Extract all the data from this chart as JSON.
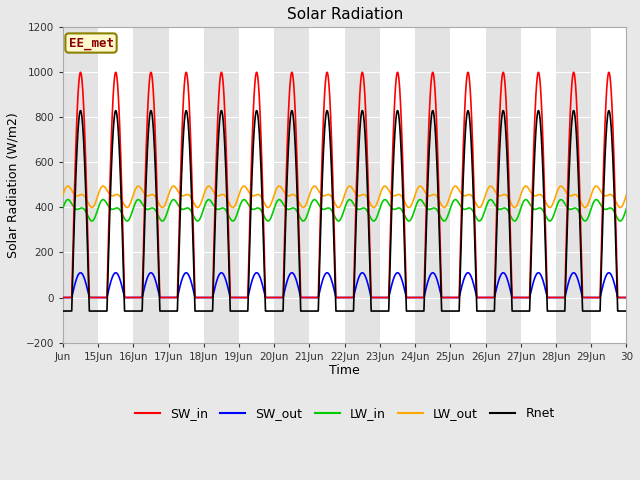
{
  "title": "Solar Radiation",
  "xlabel": "Time",
  "ylabel": "Solar Radiation (W/m2)",
  "ylim": [
    -200,
    1200
  ],
  "yticks": [
    -200,
    0,
    200,
    400,
    600,
    800,
    1000,
    1200
  ],
  "xtick_labels": [
    "Jun",
    "15Jun",
    "16Jun",
    "17Jun",
    "18Jun",
    "19Jun",
    "20Jun",
    "21Jun",
    "22Jun",
    "23Jun",
    "24Jun",
    "25Jun",
    "26Jun",
    "27Jun",
    "28Jun",
    "29Jun",
    "30"
  ],
  "annotation_text": "EE_met",
  "annotation_color": "#8B0000",
  "annotation_bg": "#FFFACD",
  "annotation_border": "#8B8000",
  "series": {
    "SW_in": {
      "color": "#FF0000",
      "lw": 1.2
    },
    "SW_out": {
      "color": "#0000FF",
      "lw": 1.2
    },
    "LW_in": {
      "color": "#00CC00",
      "lw": 1.2
    },
    "LW_out": {
      "color": "#FFA500",
      "lw": 1.2
    },
    "Rnet": {
      "color": "#000000",
      "lw": 1.2
    }
  },
  "n_days": 16,
  "SW_in_peak": 1000,
  "LW_in_base": 390,
  "LW_in_amp": 55,
  "LW_out_base": 450,
  "LW_out_amp": 55,
  "SW_out_peak": 110,
  "Rnet_night": -65,
  "band_color_even": "#DCDCDC",
  "band_color_odd": "#F0F0F0",
  "background_color": "#E8E8E8",
  "plot_bg": "#FFFFFF",
  "grid_color": "#D0D0D0",
  "figsize": [
    6.4,
    4.8
  ],
  "dpi": 100
}
